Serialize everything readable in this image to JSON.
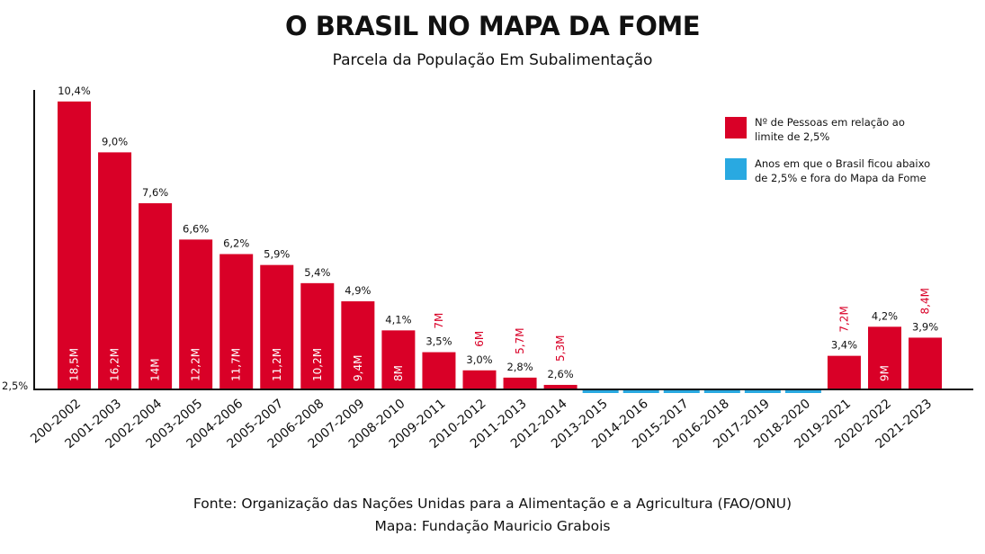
{
  "chart_data": {
    "type": "bar",
    "title": "O BRASIL NO MAPA DA FOME",
    "subtitle": "Parcela da População Em Subalimentação",
    "baseline_label": "2,5%",
    "baseline": 2.5,
    "categories": [
      "200-2002",
      "2001-2003",
      "2002-2004",
      "2003-2005",
      "2004-2006",
      "2005-2007",
      "2006-2008",
      "2007-2009",
      "2008-2010",
      "2009-2011",
      "2010-2012",
      "2011-2013",
      "2012-2014",
      "2013-2015",
      "2014-2016",
      "2015-2017",
      "2016-2018",
      "2017-2019",
      "2018-2020",
      "2019-2021",
      "2020-2022",
      "2021-2023"
    ],
    "values": [
      10.4,
      9.0,
      7.6,
      6.6,
      6.2,
      5.9,
      5.4,
      4.9,
      4.1,
      3.5,
      3.0,
      2.8,
      2.6,
      null,
      null,
      null,
      null,
      null,
      null,
      3.4,
      4.2,
      3.9
    ],
    "value_labels": [
      "10,4%",
      "9,0%",
      "7,6%",
      "6,6%",
      "6,2%",
      "5,9%",
      "5,4%",
      "4,9%",
      "4,1%",
      "3,5%",
      "3,0%",
      "2,8%",
      "2,6%",
      "",
      "",
      "",
      "",
      "",
      "",
      "3,4%",
      "4,2%",
      "3,9%"
    ],
    "people_labels": [
      "18,5M",
      "16,2M",
      "14M",
      "12,2M",
      "11,7M",
      "11,2M",
      "10,2M",
      "9,4M",
      "8M",
      "7M",
      "6M",
      "5,7M",
      "5,3M",
      "",
      "",
      "",
      "",
      "",
      "",
      "7,2M",
      "9M",
      "8,4M"
    ],
    "people_inside": [
      true,
      true,
      true,
      true,
      true,
      true,
      true,
      true,
      true,
      false,
      false,
      false,
      false,
      false,
      false,
      false,
      false,
      false,
      false,
      false,
      true,
      false
    ],
    "below_threshold": [
      false,
      false,
      false,
      false,
      false,
      false,
      false,
      false,
      false,
      false,
      false,
      false,
      false,
      true,
      true,
      true,
      true,
      true,
      true,
      false,
      false,
      false
    ],
    "legend": [
      {
        "label_line1": "Nº de Pessoas em relação ao",
        "label_line2": "limite de 2,5%",
        "color": "#d90027"
      },
      {
        "label_line1": "Anos em que o Brasil ficou abaixo",
        "label_line2": "de 2,5% e fora do Mapa da Fome",
        "color": "#29a9e1"
      }
    ],
    "legend_position": "top-right",
    "grid": false
  },
  "colors": {
    "bar": "#d90027",
    "below": "#29a9e1",
    "text": "#111111"
  },
  "footer": {
    "source": "Fonte: Organização das Nações Unidas para a Alimentação e a Agricultura (FAO/ONU)",
    "credit": "Mapa: Fundação Mauricio Grabois"
  }
}
